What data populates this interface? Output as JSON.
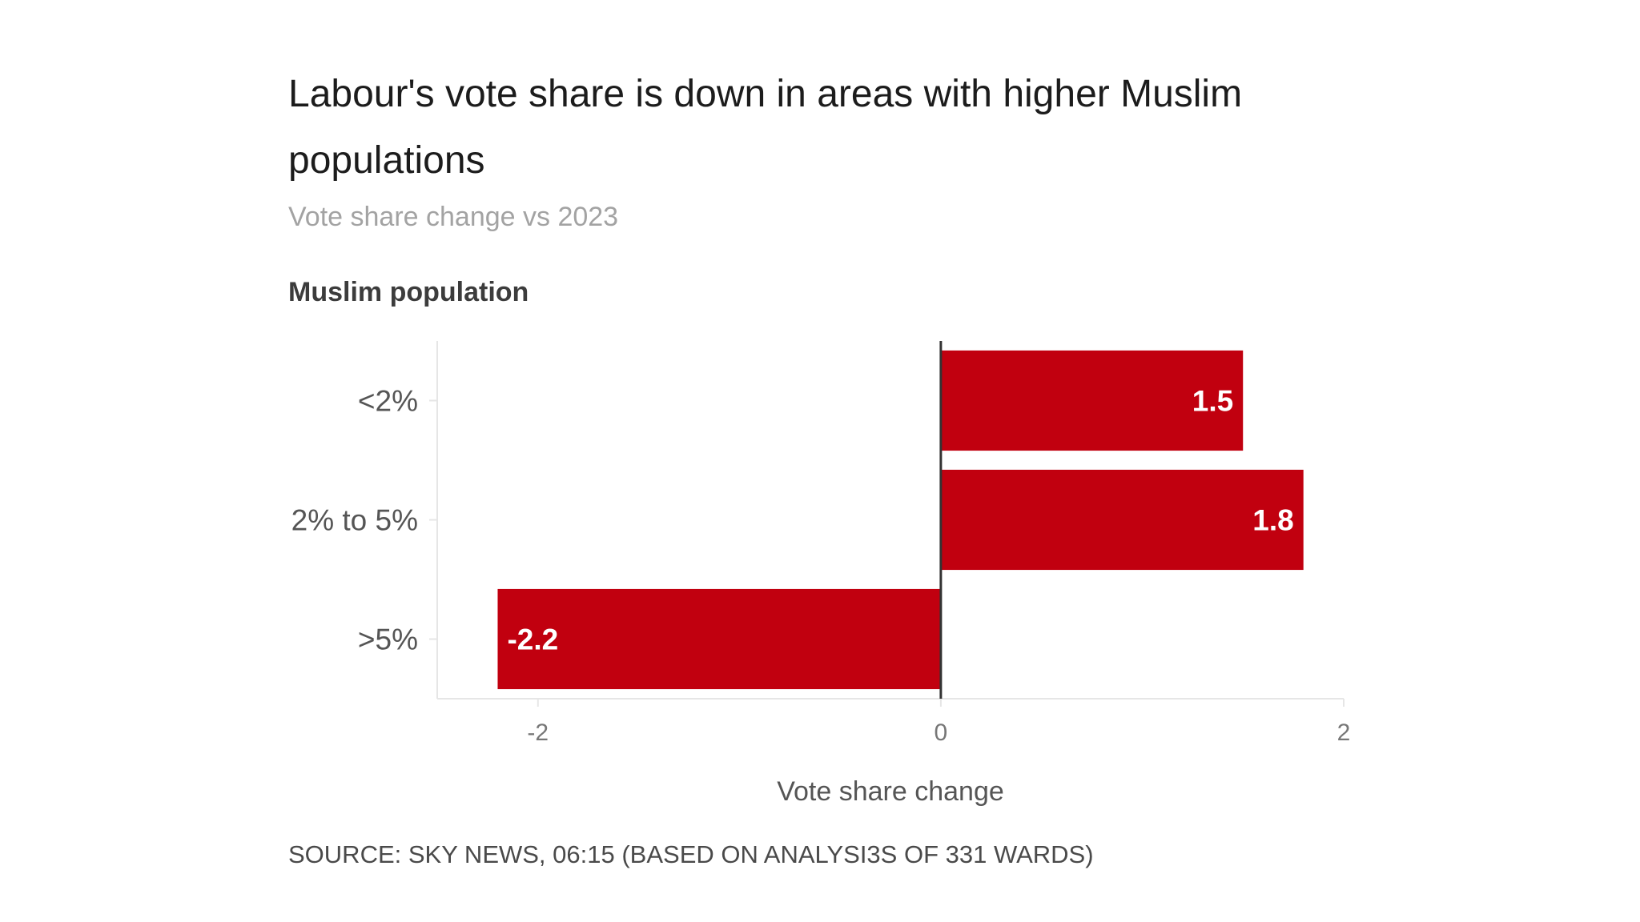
{
  "chart_data": {
    "type": "bar",
    "orientation": "horizontal",
    "title": "Labour's vote share is down in areas with higher Muslim populations",
    "subtitle": "Vote share change vs 2023",
    "ylabel": "Muslim population",
    "xlabel": "Vote share change",
    "categories": [
      "<2%",
      "2% to 5%",
      ">5%"
    ],
    "values": [
      1.5,
      1.8,
      -2.2
    ],
    "data_labels": [
      "1.5",
      "1.8",
      "-2.2"
    ],
    "xlim": [
      -2.5,
      2
    ],
    "xticks": [
      -2,
      0,
      2
    ],
    "xtick_labels": [
      "-2",
      "0",
      "2"
    ],
    "bar_color": "#c1000f",
    "grid": false,
    "legend": "none"
  },
  "source": "SOURCE: SKY NEWS, 06:15 (BASED ON ANALYSI3S OF 331 WARDS)"
}
